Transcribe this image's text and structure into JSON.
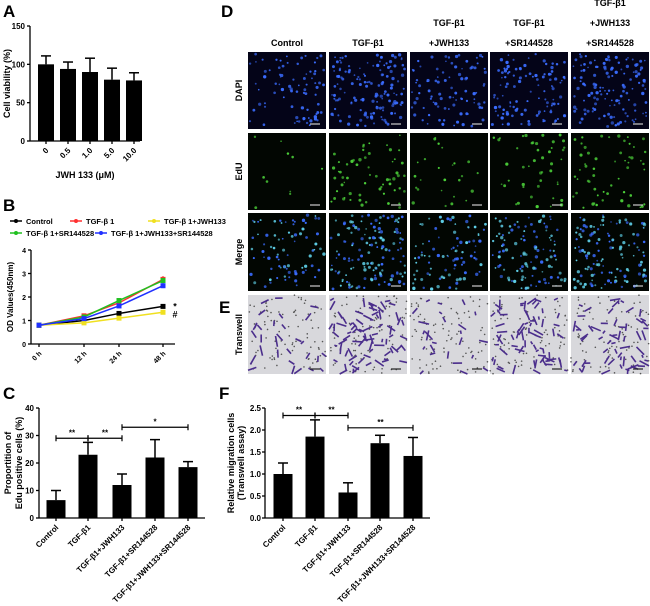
{
  "panel_labels": {
    "A": "A",
    "B": "B",
    "C": "C",
    "D": "D",
    "E": "E",
    "F": "F"
  },
  "microscopy": {
    "columns": [
      "Control",
      "TGF-β1",
      [
        "TGF-β1",
        "+JWH133"
      ],
      [
        "TGF-β1",
        "+SR144528"
      ],
      [
        "TGF-β1",
        "+JWH133",
        "+SR144528"
      ]
    ],
    "rows": [
      "DAPI",
      "EdU",
      "Merge",
      "Transwell"
    ],
    "colors": {
      "dapi": "#3a6cff",
      "edu": "#4cd23a",
      "merge": "#5fd0e8",
      "transwell_bg": "#d8d8dc",
      "stain": "#4b2e8c"
    }
  },
  "chart_data": [
    {
      "id": "A",
      "type": "bar",
      "title": "",
      "xlabel": "JWH 133 (μM)",
      "ylabel": "Cell viability (%)",
      "categories": [
        "0",
        "0.5",
        "1.0",
        "5.0",
        "10.0"
      ],
      "values": [
        100,
        94,
        90,
        80,
        79
      ],
      "errors": [
        11,
        9,
        18,
        15,
        10
      ],
      "ylim": [
        0,
        150
      ],
      "yticks": [
        "0",
        "50",
        "100",
        "150"
      ],
      "grid": false
    },
    {
      "id": "B",
      "type": "line",
      "xlabel": "",
      "ylabel": "OD Values(450nm)",
      "categories": [
        "0 h",
        "12 h",
        "24 h",
        "48 h"
      ],
      "ylim": [
        0,
        4
      ],
      "yticks": [
        "0",
        "1",
        "2",
        "3",
        "4"
      ],
      "grid": false,
      "legend_position": "top",
      "series": [
        {
          "name": "Control",
          "color": "#000000",
          "values": [
            0.8,
            1.0,
            1.3,
            1.6
          ],
          "errors": [
            0.03,
            0.05,
            0.07,
            0.08
          ],
          "annotation": "*"
        },
        {
          "name": "TGF-β 1",
          "color": "#ff3030",
          "values": [
            0.8,
            1.2,
            1.75,
            2.75
          ],
          "errors": [
            0.03,
            0.06,
            0.08,
            0.14
          ],
          "annotation": ""
        },
        {
          "name": "TGF-β 1+JWH133",
          "color": "#f0e020",
          "values": [
            0.8,
            0.9,
            1.1,
            1.35
          ],
          "errors": [
            0.03,
            0.05,
            0.06,
            0.06
          ],
          "annotation": "#"
        },
        {
          "name": "TGF-β 1+SR144528",
          "color": "#20c020",
          "values": [
            0.8,
            1.15,
            1.85,
            2.7
          ],
          "errors": [
            0.03,
            0.06,
            0.07,
            0.12
          ],
          "annotation": ""
        },
        {
          "name": "TGF-β 1+JWH133+SR144528",
          "color": "#2030ff",
          "values": [
            0.8,
            1.08,
            1.62,
            2.48
          ],
          "errors": [
            0.03,
            0.05,
            0.08,
            0.1
          ],
          "annotation": ""
        }
      ]
    },
    {
      "id": "C",
      "type": "bar",
      "ylabel": [
        "Proportition of",
        "Edu positive cells (%)"
      ],
      "xlabel": "",
      "categories": [
        "Control",
        "TGF-β1",
        "TGF-β1+JWH133",
        "TGF-β1+SR144528",
        "TGF-β1+JWH133+SR144528"
      ],
      "values": [
        6.5,
        23,
        12,
        22,
        18.5
      ],
      "errors": [
        3.5,
        4.5,
        4,
        6.5,
        2
      ],
      "ylim": [
        0,
        40
      ],
      "yticks": [
        "0",
        "10",
        "20",
        "30",
        "40"
      ],
      "grid": false,
      "significance": [
        {
          "from": 0,
          "to": 1,
          "y": 29,
          "label": "**"
        },
        {
          "from": 1,
          "to": 2,
          "y": 29,
          "label": "**"
        },
        {
          "from": 2,
          "to": 4,
          "y": 33,
          "label": "*"
        }
      ]
    },
    {
      "id": "F",
      "type": "bar",
      "ylabel": [
        "Relative migration cells",
        "(Transwell assay)"
      ],
      "xlabel": "",
      "categories": [
        "Control",
        "TGF-β1",
        "TGF-β1+JWH133",
        "TGF-β1+SR144528",
        "TGF-β1+JWH133+SR144528"
      ],
      "values": [
        1.0,
        1.85,
        0.58,
        1.7,
        1.41
      ],
      "errors": [
        0.25,
        0.38,
        0.22,
        0.18,
        0.42
      ],
      "ylim": [
        0,
        2.5
      ],
      "yticks": [
        "0.0",
        "0.5",
        "1.0",
        "1.5",
        "2.0",
        "2.5"
      ],
      "grid": false,
      "significance": [
        {
          "from": 0,
          "to": 1,
          "y": 2.33,
          "label": "**"
        },
        {
          "from": 1,
          "to": 2,
          "y": 2.33,
          "label": "**"
        },
        {
          "from": 2,
          "to": 4,
          "y": 2.05,
          "label": "**"
        }
      ]
    }
  ]
}
